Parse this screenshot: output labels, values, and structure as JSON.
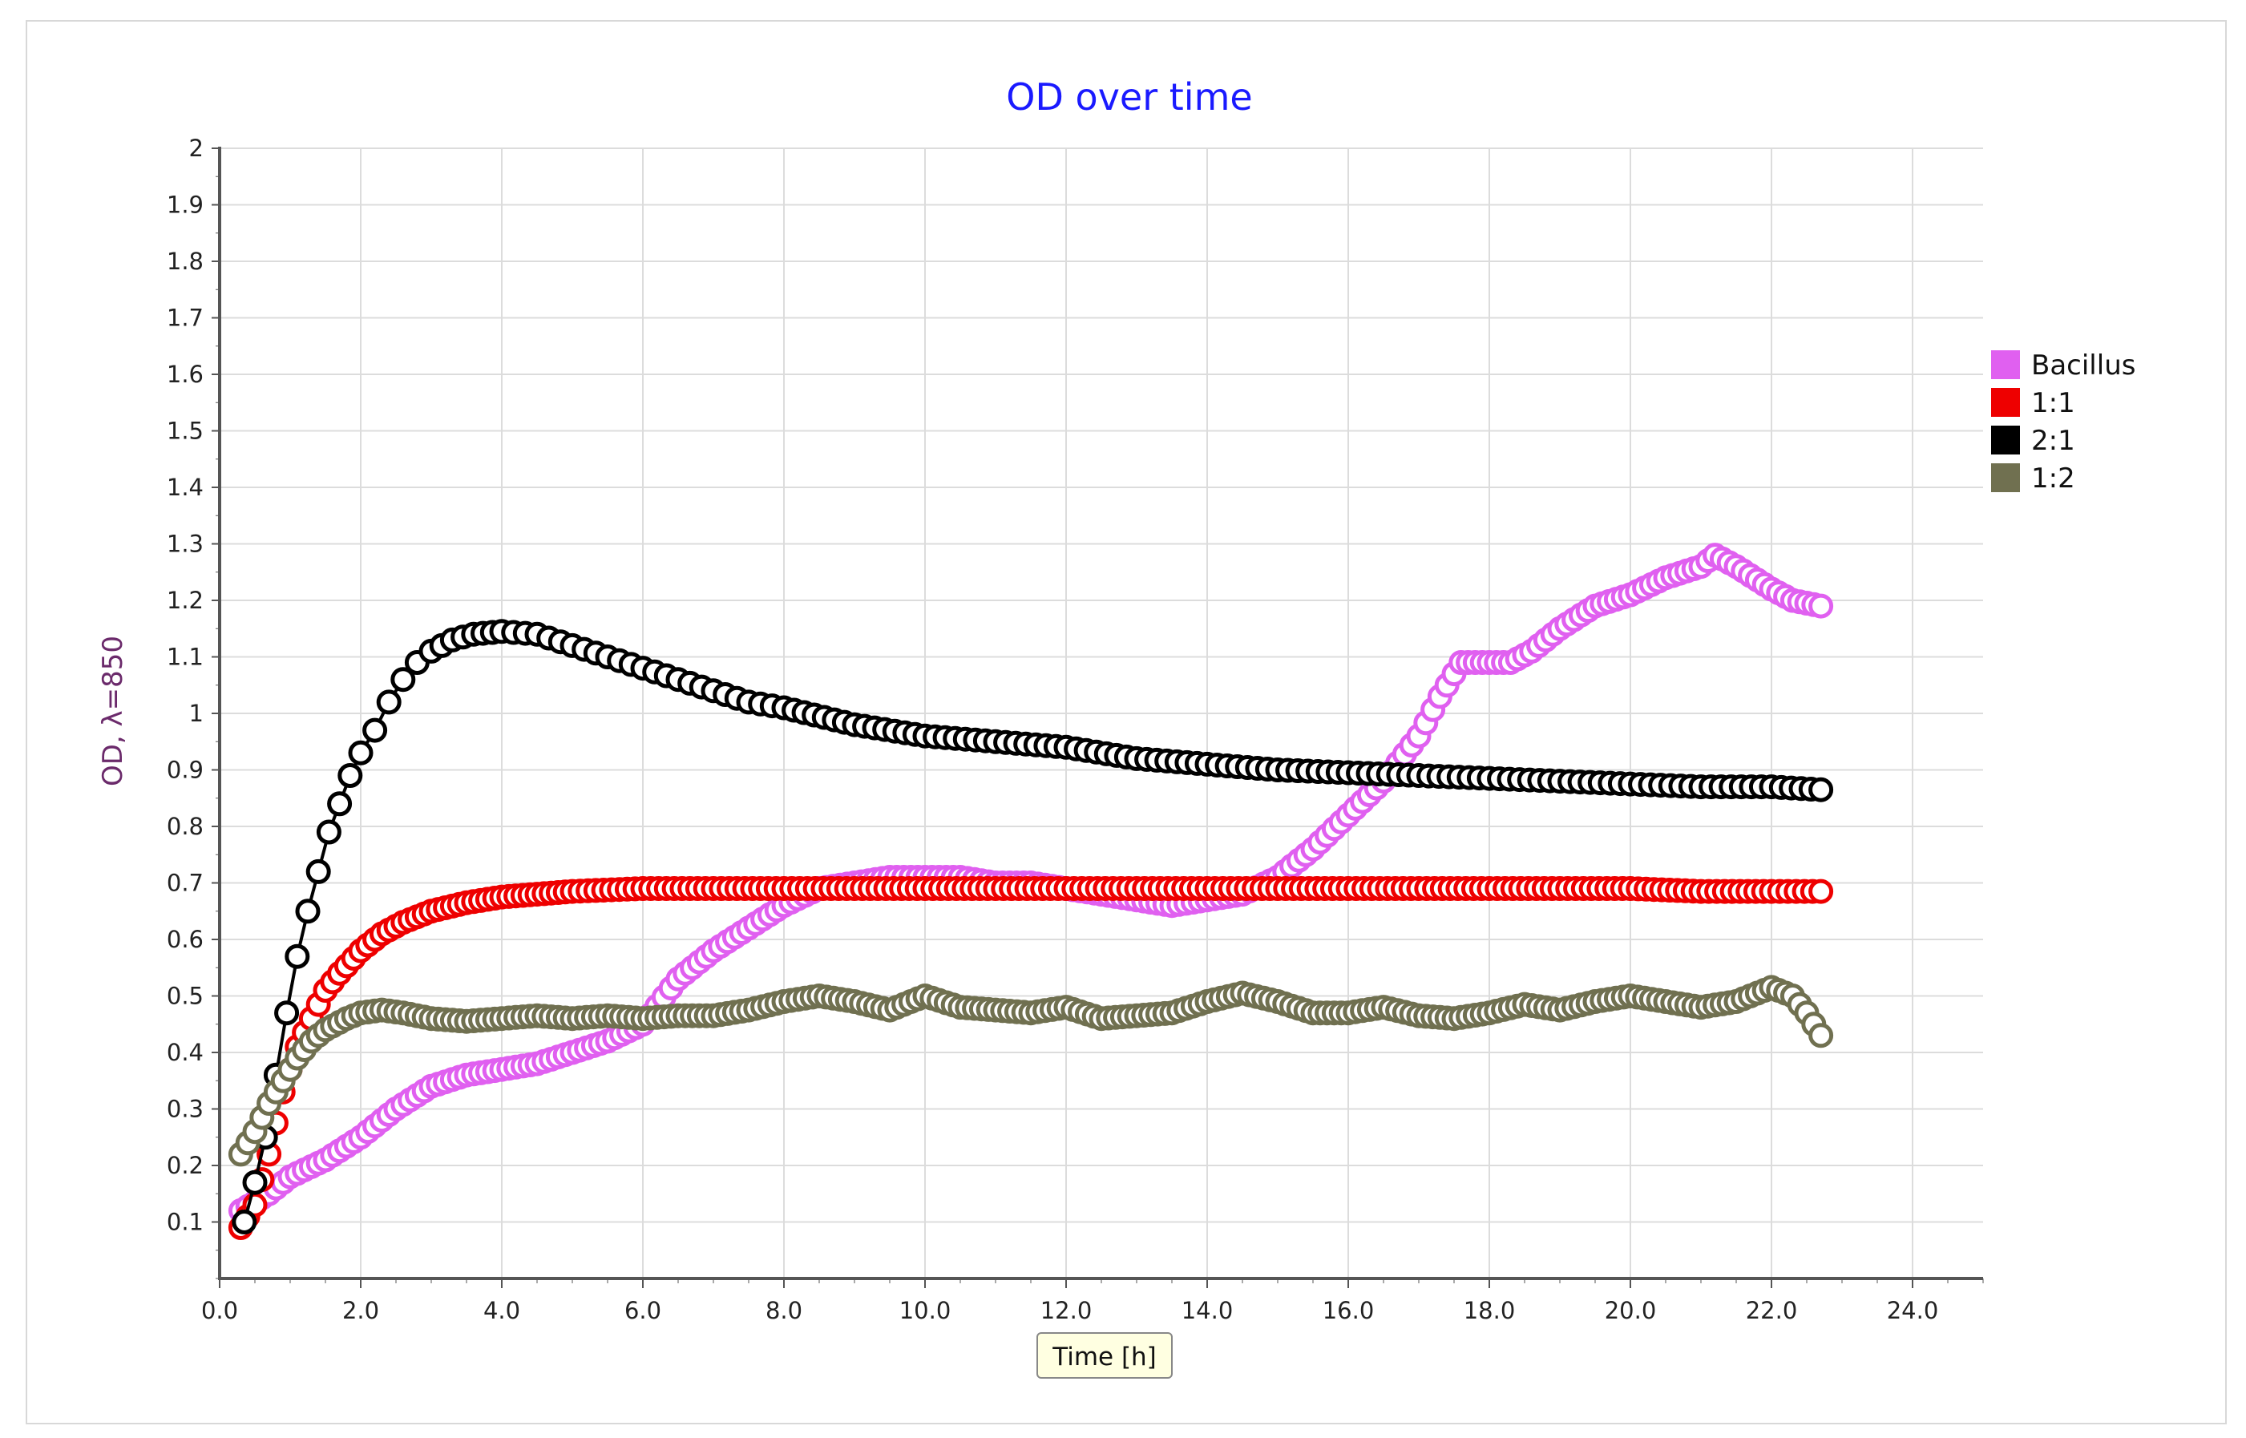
{
  "chart_data": {
    "type": "scatter",
    "title": "OD over time",
    "xlabel": "Time [h]",
    "ylabel": "OD, λ=850",
    "xlim": [
      0,
      25
    ],
    "ylim": [
      0,
      2
    ],
    "x_ticks": [
      "0.0",
      "2.0",
      "4.0",
      "6.0",
      "8.0",
      "10.0",
      "12.0",
      "14.0",
      "16.0",
      "18.0",
      "20.0",
      "22.0",
      "24.0"
    ],
    "y_ticks": [
      "0.1",
      "0.2",
      "0.3",
      "0.4",
      "0.5",
      "0.6",
      "0.7",
      "0.8",
      "0.9",
      "1",
      "1.1",
      "1.2",
      "1.3",
      "1.4",
      "1.5",
      "1.6",
      "1.7",
      "1.8",
      "1.9",
      "2"
    ],
    "grid": true,
    "legend_position": "right",
    "colors": {
      "title": "#1a1aff",
      "ylabel": "#6b2a6b",
      "grid": "#dcdcdc",
      "axis": "#555555",
      "xlabel_box_fill": "#ffffe1",
      "xlabel_box_stroke": "#888888"
    },
    "series": [
      {
        "name": "Bacillus",
        "color": "#e060f0",
        "points": [
          [
            0.3,
            0.12
          ],
          [
            0.7,
            0.15
          ],
          [
            1.0,
            0.18
          ],
          [
            1.5,
            0.21
          ],
          [
            2.0,
            0.25
          ],
          [
            2.5,
            0.3
          ],
          [
            3.0,
            0.34
          ],
          [
            3.5,
            0.36
          ],
          [
            4.0,
            0.37
          ],
          [
            4.5,
            0.38
          ],
          [
            5.0,
            0.4
          ],
          [
            5.5,
            0.42
          ],
          [
            6.0,
            0.45
          ],
          [
            6.5,
            0.53
          ],
          [
            7.0,
            0.58
          ],
          [
            7.5,
            0.62
          ],
          [
            8.0,
            0.66
          ],
          [
            8.5,
            0.69
          ],
          [
            9.0,
            0.7
          ],
          [
            9.5,
            0.71
          ],
          [
            10.0,
            0.71
          ],
          [
            10.5,
            0.71
          ],
          [
            11.0,
            0.7
          ],
          [
            11.5,
            0.7
          ],
          [
            12.0,
            0.69
          ],
          [
            12.5,
            0.68
          ],
          [
            13.0,
            0.67
          ],
          [
            13.5,
            0.66
          ],
          [
            14.0,
            0.67
          ],
          [
            14.5,
            0.68
          ],
          [
            15.0,
            0.71
          ],
          [
            15.5,
            0.76
          ],
          [
            16.0,
            0.82
          ],
          [
            16.5,
            0.88
          ],
          [
            17.0,
            0.96
          ],
          [
            17.3,
            1.03
          ],
          [
            17.6,
            1.09
          ],
          [
            18.0,
            1.09
          ],
          [
            18.3,
            1.09
          ],
          [
            18.6,
            1.11
          ],
          [
            19.0,
            1.15
          ],
          [
            19.5,
            1.19
          ],
          [
            20.0,
            1.21
          ],
          [
            20.5,
            1.24
          ],
          [
            21.0,
            1.26
          ],
          [
            21.2,
            1.28
          ],
          [
            21.5,
            1.26
          ],
          [
            22.0,
            1.22
          ],
          [
            22.3,
            1.2
          ],
          [
            22.7,
            1.19
          ]
        ]
      },
      {
        "name": "1:1",
        "color": "#ee0000",
        "points": [
          [
            0.3,
            0.09
          ],
          [
            0.5,
            0.13
          ],
          [
            0.7,
            0.22
          ],
          [
            0.9,
            0.33
          ],
          [
            1.1,
            0.41
          ],
          [
            1.3,
            0.46
          ],
          [
            1.5,
            0.51
          ],
          [
            1.7,
            0.54
          ],
          [
            2.0,
            0.58
          ],
          [
            2.3,
            0.61
          ],
          [
            2.6,
            0.63
          ],
          [
            3.0,
            0.65
          ],
          [
            3.5,
            0.665
          ],
          [
            4.0,
            0.675
          ],
          [
            4.5,
            0.68
          ],
          [
            5.0,
            0.685
          ],
          [
            6.0,
            0.69
          ],
          [
            7.0,
            0.69
          ],
          [
            8.0,
            0.69
          ],
          [
            9.0,
            0.69
          ],
          [
            10.0,
            0.69
          ],
          [
            11.0,
            0.69
          ],
          [
            12.0,
            0.69
          ],
          [
            13.0,
            0.69
          ],
          [
            14.0,
            0.69
          ],
          [
            15.0,
            0.69
          ],
          [
            16.0,
            0.69
          ],
          [
            17.0,
            0.69
          ],
          [
            18.0,
            0.69
          ],
          [
            19.0,
            0.69
          ],
          [
            20.0,
            0.69
          ],
          [
            21.0,
            0.685
          ],
          [
            22.0,
            0.685
          ],
          [
            22.7,
            0.685
          ]
        ]
      },
      {
        "name": "2:1",
        "color": "#000000",
        "points": [
          [
            0.35,
            0.1
          ],
          [
            0.5,
            0.17
          ],
          [
            0.65,
            0.25
          ],
          [
            0.8,
            0.36
          ],
          [
            0.95,
            0.47
          ],
          [
            1.1,
            0.57
          ],
          [
            1.25,
            0.65
          ],
          [
            1.4,
            0.72
          ],
          [
            1.55,
            0.79
          ],
          [
            1.7,
            0.84
          ],
          [
            1.85,
            0.89
          ],
          [
            2.0,
            0.93
          ],
          [
            2.2,
            0.97
          ],
          [
            2.4,
            1.02
          ],
          [
            2.6,
            1.06
          ],
          [
            2.8,
            1.09
          ],
          [
            3.0,
            1.11
          ],
          [
            3.3,
            1.13
          ],
          [
            3.6,
            1.14
          ],
          [
            4.0,
            1.145
          ],
          [
            4.5,
            1.14
          ],
          [
            5.0,
            1.12
          ],
          [
            5.5,
            1.1
          ],
          [
            6.0,
            1.08
          ],
          [
            6.5,
            1.06
          ],
          [
            7.0,
            1.04
          ],
          [
            7.5,
            1.02
          ],
          [
            8.0,
            1.01
          ],
          [
            9.0,
            0.98
          ],
          [
            10.0,
            0.96
          ],
          [
            11.0,
            0.95
          ],
          [
            12.0,
            0.94
          ],
          [
            13.0,
            0.92
          ],
          [
            14.0,
            0.91
          ],
          [
            15.0,
            0.9
          ],
          [
            16.0,
            0.895
          ],
          [
            17.0,
            0.89
          ],
          [
            18.0,
            0.885
          ],
          [
            19.0,
            0.88
          ],
          [
            20.0,
            0.875
          ],
          [
            21.0,
            0.87
          ],
          [
            22.0,
            0.87
          ],
          [
            22.7,
            0.865
          ]
        ]
      },
      {
        "name": "1:2",
        "color": "#707050",
        "points": [
          [
            0.3,
            0.22
          ],
          [
            0.5,
            0.26
          ],
          [
            0.7,
            0.31
          ],
          [
            0.9,
            0.35
          ],
          [
            1.1,
            0.39
          ],
          [
            1.3,
            0.42
          ],
          [
            1.5,
            0.44
          ],
          [
            1.8,
            0.46
          ],
          [
            2.0,
            0.47
          ],
          [
            2.3,
            0.475
          ],
          [
            2.6,
            0.47
          ],
          [
            3.0,
            0.46
          ],
          [
            3.5,
            0.455
          ],
          [
            4.0,
            0.46
          ],
          [
            4.5,
            0.465
          ],
          [
            5.0,
            0.46
          ],
          [
            5.5,
            0.465
          ],
          [
            6.0,
            0.46
          ],
          [
            6.5,
            0.465
          ],
          [
            7.0,
            0.465
          ],
          [
            7.5,
            0.475
          ],
          [
            8.0,
            0.49
          ],
          [
            8.5,
            0.5
          ],
          [
            9.0,
            0.49
          ],
          [
            9.5,
            0.475
          ],
          [
            10.0,
            0.5
          ],
          [
            10.5,
            0.48
          ],
          [
            11.0,
            0.475
          ],
          [
            11.5,
            0.47
          ],
          [
            12.0,
            0.48
          ],
          [
            12.5,
            0.46
          ],
          [
            13.0,
            0.465
          ],
          [
            13.5,
            0.47
          ],
          [
            14.0,
            0.49
          ],
          [
            14.5,
            0.505
          ],
          [
            15.0,
            0.49
          ],
          [
            15.5,
            0.47
          ],
          [
            16.0,
            0.47
          ],
          [
            16.5,
            0.48
          ],
          [
            17.0,
            0.465
          ],
          [
            17.5,
            0.46
          ],
          [
            18.0,
            0.47
          ],
          [
            18.5,
            0.485
          ],
          [
            19.0,
            0.475
          ],
          [
            19.5,
            0.49
          ],
          [
            20.0,
            0.5
          ],
          [
            20.5,
            0.49
          ],
          [
            21.0,
            0.48
          ],
          [
            21.5,
            0.49
          ],
          [
            22.0,
            0.515
          ],
          [
            22.3,
            0.5
          ],
          [
            22.5,
            0.47
          ],
          [
            22.7,
            0.43
          ]
        ]
      }
    ]
  }
}
